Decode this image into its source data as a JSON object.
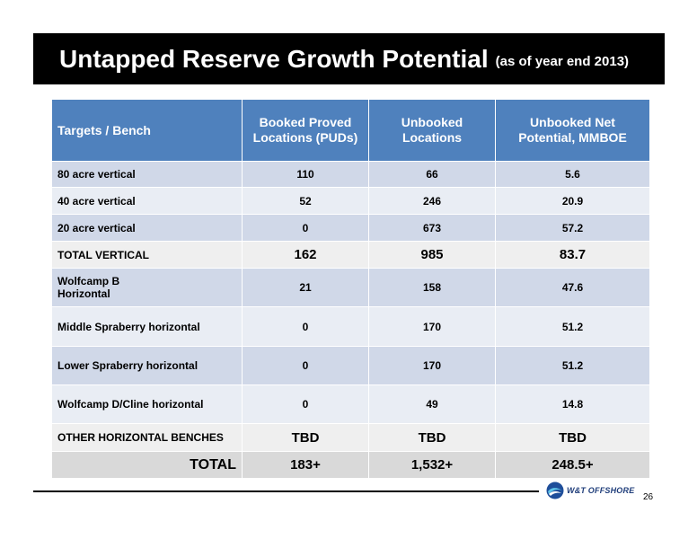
{
  "title": {
    "main": "Untapped Reserve Growth Potential",
    "sub": "(as of year end 2013)"
  },
  "table": {
    "headers": [
      "Targets / Bench",
      "Booked Proved Locations (PUDs)",
      "Unbooked Locations",
      "Unbooked Net Potential, MMBOE"
    ],
    "rows": [
      {
        "label": "80 acre vertical",
        "booked": "110",
        "unbooked": "66",
        "potential": "5.6"
      },
      {
        "label": "40 acre vertical",
        "booked": "52",
        "unbooked": "246",
        "potential": "20.9"
      },
      {
        "label": "20 acre vertical",
        "booked": "0",
        "unbooked": "673",
        "potential": "57.2"
      },
      {
        "label": "TOTAL VERTICAL",
        "booked": "162",
        "unbooked": "985",
        "potential": "83.7"
      },
      {
        "label_line1": "Wolfcamp B",
        "label_line2": "Horizontal",
        "booked": "21",
        "unbooked": "158",
        "potential": "47.6"
      },
      {
        "label": "Middle Spraberry horizontal",
        "booked": "0",
        "unbooked": "170",
        "potential": "51.2"
      },
      {
        "label": "Lower Spraberry horizontal",
        "booked": "0",
        "unbooked": "170",
        "potential": "51.2"
      },
      {
        "label": "Wolfcamp D/Cline horizontal",
        "booked": "0",
        "unbooked": "49",
        "potential": "14.8"
      },
      {
        "label": "OTHER HORIZONTAL BENCHES",
        "booked": "TBD",
        "unbooked": "TBD",
        "potential": "TBD"
      },
      {
        "label": "TOTAL",
        "booked": "183+",
        "unbooked": "1,532+",
        "potential": "248.5+"
      }
    ]
  },
  "footer": {
    "logo_text": "W&T OFFSHORE",
    "logo_icon": "wt-offshore-logo-icon",
    "page_number": "26"
  },
  "colors": {
    "header_blue": "#4f81bd",
    "band_dark": "#d0d8e8",
    "band_light": "#e9edf4",
    "title_bar": "#000000"
  }
}
